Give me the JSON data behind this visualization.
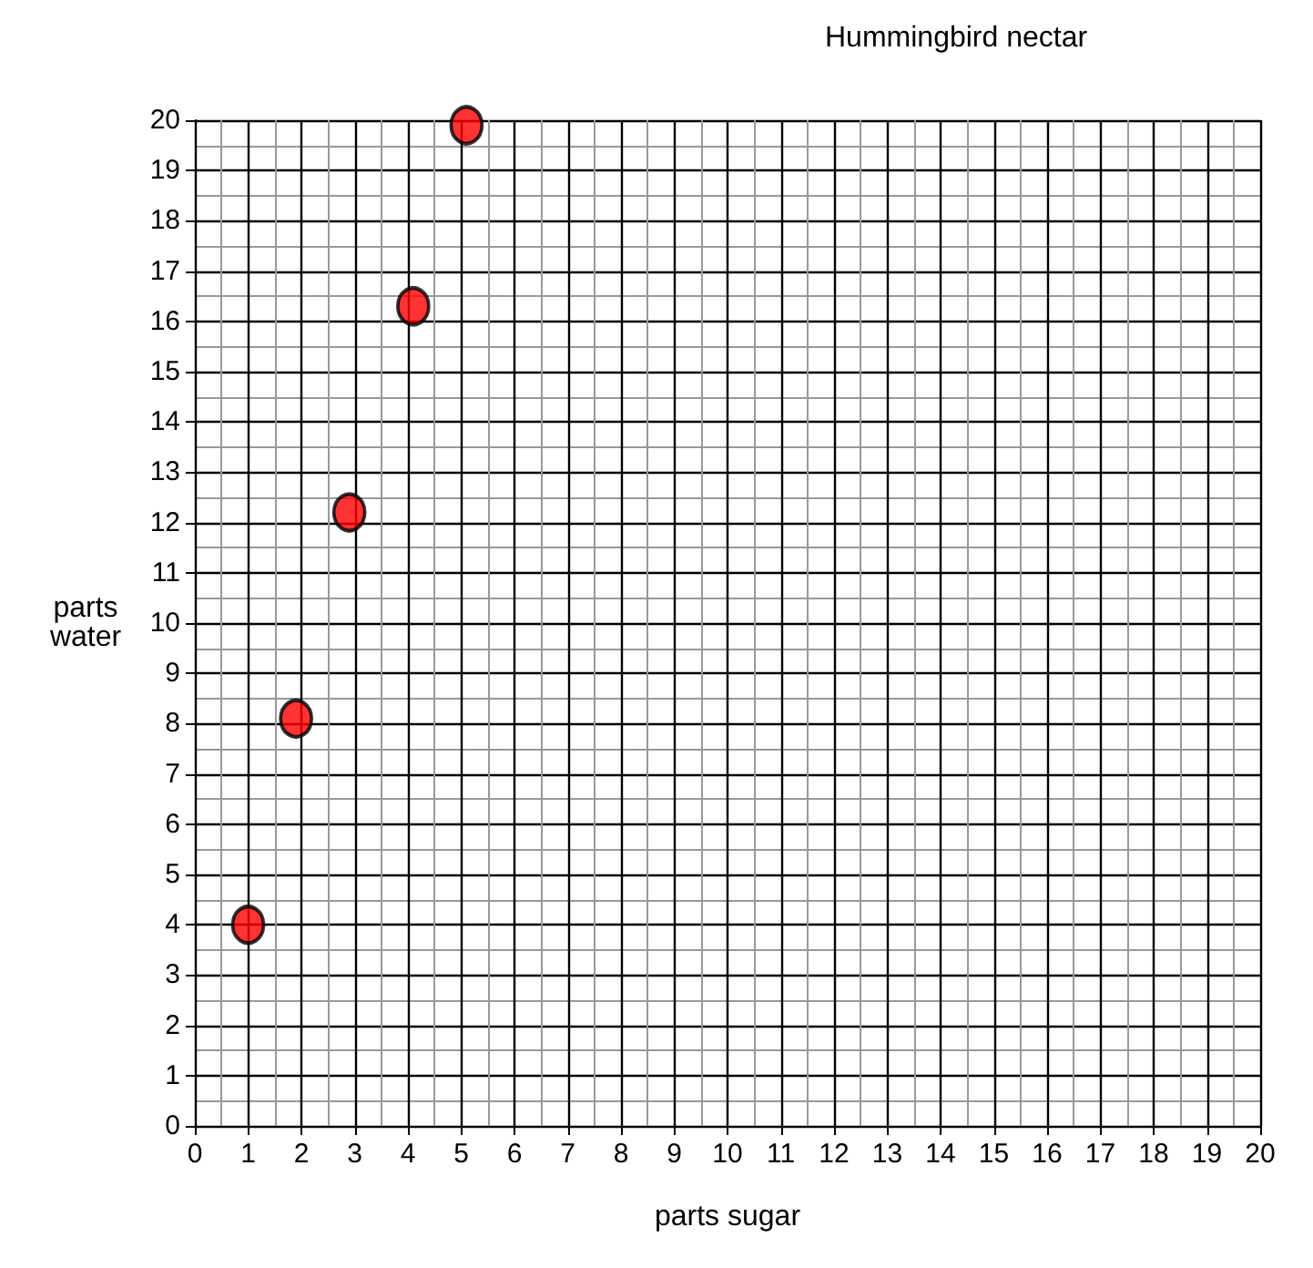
{
  "chart_data": {
    "type": "scatter",
    "title": "Hummingbird nectar",
    "xlabel": "parts sugar",
    "ylabel": "parts water",
    "x": [
      1,
      1.9,
      2.9,
      4.1,
      5.1
    ],
    "series": [
      {
        "color": "#ff0000",
        "values": [
          4,
          8.1,
          12.2,
          16.3,
          19.9
        ]
      }
    ],
    "xlim": [
      0,
      20
    ],
    "xticks": [
      0,
      1,
      2,
      3,
      4,
      5,
      6,
      7,
      8,
      9,
      10,
      11,
      12,
      13,
      14,
      15,
      16,
      17,
      18,
      19,
      20
    ],
    "ylim": [
      0,
      20
    ],
    "yticks": [
      0,
      1,
      2,
      3,
      4,
      5,
      6,
      7,
      8,
      9,
      10,
      11,
      12,
      13,
      14,
      15,
      16,
      17,
      18,
      19,
      20
    ],
    "grid": true,
    "marker": "circle"
  }
}
